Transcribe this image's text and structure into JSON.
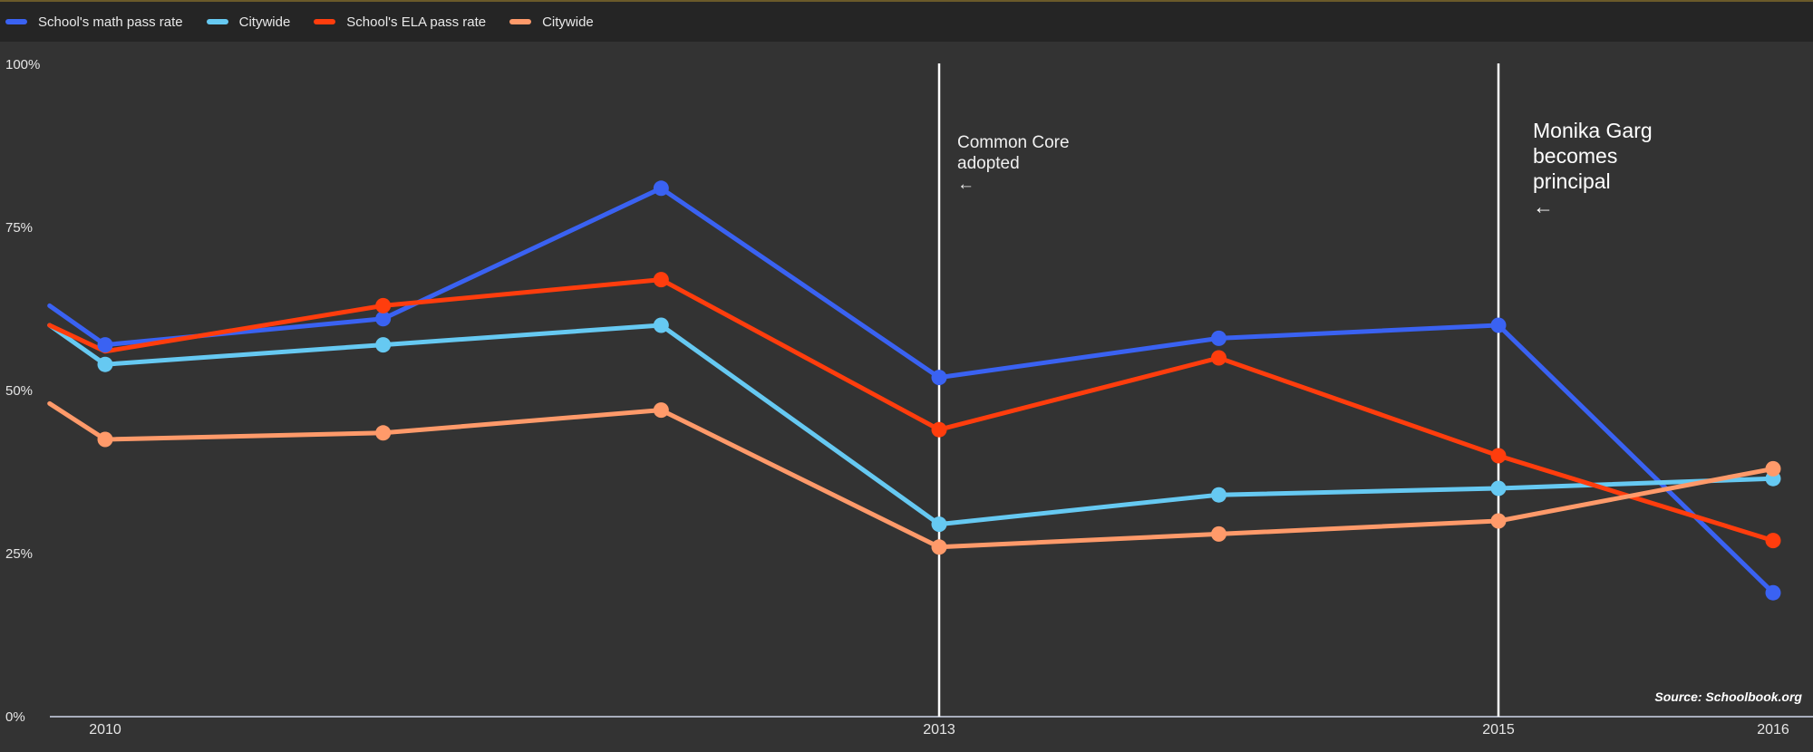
{
  "chart_data": {
    "type": "line",
    "x": [
      2009.8,
      2010,
      2011,
      2012,
      2013,
      2014,
      2015,
      2016
    ],
    "x_ticks": [
      "2010",
      "2013",
      "2015",
      "2016"
    ],
    "x_tick_values": [
      2010,
      2013,
      2015,
      2016
    ],
    "y_ticks": [
      "0%",
      "25%",
      "50%",
      "75%",
      "100%"
    ],
    "y_tick_values": [
      0,
      25,
      50,
      75,
      100
    ],
    "ylim": [
      0,
      100
    ],
    "xlim": [
      2009.8,
      2016.1
    ],
    "grid": false,
    "legend_position": "top-left",
    "series": [
      {
        "name": "School's math pass rate",
        "color": "#3a62f2",
        "values": [
          63,
          57,
          61,
          81,
          52,
          58,
          60,
          19
        ],
        "markers": [
          false,
          true,
          true,
          true,
          true,
          true,
          true,
          true
        ]
      },
      {
        "name": "Citywide",
        "color": "#66c9f2",
        "values": [
          60,
          54,
          57,
          60,
          29.5,
          34,
          35,
          36.5
        ],
        "markers": [
          false,
          true,
          true,
          true,
          true,
          true,
          true,
          true
        ]
      },
      {
        "name": "School's ELA pass rate",
        "color": "#ff3d0d",
        "values": [
          60,
          56,
          63,
          67,
          44,
          55,
          40,
          27
        ],
        "markers": [
          false,
          false,
          true,
          true,
          true,
          true,
          true,
          true
        ]
      },
      {
        "name": "Citywide",
        "color": "#ff9a6a",
        "values": [
          48,
          42.5,
          43.5,
          47,
          26,
          28,
          30,
          38
        ],
        "markers": [
          false,
          true,
          true,
          true,
          true,
          true,
          true,
          true
        ]
      }
    ],
    "annotations": [
      {
        "x": 2013,
        "lines": [
          "Common Core",
          "adopted",
          "←"
        ]
      },
      {
        "x": 2015,
        "lines": [
          "Monika Garg",
          "becomes",
          "principal",
          "←"
        ]
      }
    ],
    "source": "Source: Schoolbook.org"
  }
}
